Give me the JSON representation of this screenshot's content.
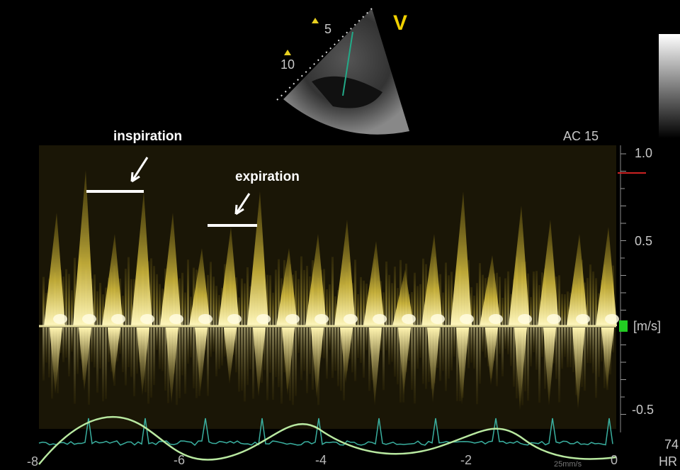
{
  "probe": {
    "view_label": "V",
    "depth_labels": [
      "5",
      "10"
    ]
  },
  "settings": {
    "ac": "AC 15"
  },
  "velocity_axis": {
    "labels": [
      "1.0",
      "0.5",
      "[m/s]",
      "-0.5"
    ]
  },
  "annotations": {
    "inspiration": "inspiration",
    "expiration": "expiration"
  },
  "time_axis": {
    "labels": [
      "-8",
      "-6",
      "-4",
      "-2",
      "0"
    ],
    "speed": "25mm/s"
  },
  "heart_rate": {
    "value": "74",
    "label": "HR"
  }
}
